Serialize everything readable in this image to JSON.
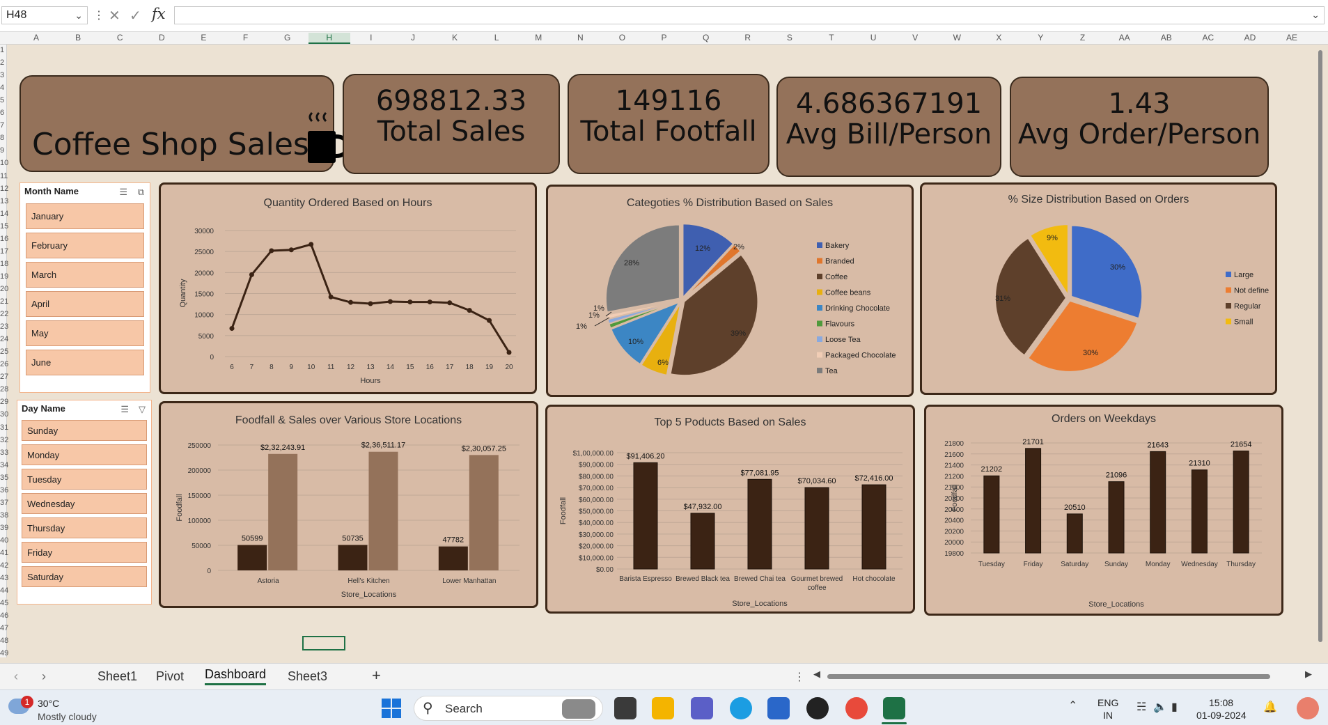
{
  "formula_bar": {
    "name_box": "H48",
    "fx": "fx",
    "formula": ""
  },
  "columns": [
    "A",
    "B",
    "C",
    "D",
    "E",
    "F",
    "G",
    "H",
    "I",
    "J",
    "K",
    "L",
    "M",
    "N",
    "O",
    "P",
    "Q",
    "R",
    "S",
    "T",
    "U",
    "V",
    "W",
    "X",
    "Y",
    "Z",
    "AA",
    "AB",
    "AC",
    "AD",
    "AE"
  ],
  "rows": [
    "1",
    "2",
    "3",
    "4",
    "5",
    "6",
    "7",
    "8",
    "9",
    "10",
    "11",
    "12",
    "13",
    "14",
    "15",
    "16",
    "17",
    "18",
    "19",
    "20",
    "21",
    "22",
    "23",
    "24",
    "25",
    "26",
    "27",
    "28",
    "29",
    "30",
    "31",
    "32",
    "33",
    "34",
    "35",
    "36",
    "37",
    "38",
    "39",
    "40",
    "41",
    "42",
    "43",
    "44",
    "45",
    "46",
    "47",
    "48",
    "49"
  ],
  "header_card": {
    "title": "Coffee Shop Sales",
    "icon": "coffee-cup-icon"
  },
  "kpis": [
    {
      "value": "698812.33",
      "label": "Total Sales"
    },
    {
      "value": "149116",
      "label": "Total Footfall"
    },
    {
      "value": "4.686367191",
      "label": "Avg Bill/Person"
    },
    {
      "value": "1.43",
      "label": "Avg Order/Person"
    }
  ],
  "slicers": {
    "month": {
      "title": "Month Name",
      "items": [
        "January",
        "February",
        "March",
        "April",
        "May",
        "June"
      ]
    },
    "day": {
      "title": "Day Name",
      "items": [
        "Sunday",
        "Monday",
        "Tuesday",
        "Wednesday",
        "Thursday",
        "Friday",
        "Saturday"
      ]
    }
  },
  "chart_data": [
    {
      "type": "line",
      "title": "Quantity Ordered Based on Hours",
      "xlabel": "Hours",
      "ylabel": "Quantity",
      "x": [
        6,
        7,
        8,
        9,
        10,
        11,
        12,
        13,
        14,
        15,
        16,
        17,
        18,
        19,
        20
      ],
      "values": [
        6700,
        19500,
        25200,
        25400,
        26700,
        14200,
        12900,
        12600,
        13100,
        13000,
        13000,
        12800,
        11000,
        8600,
        1000
      ],
      "ylim": [
        0,
        30000
      ],
      "yticks": [
        "0",
        "5000",
        "10000",
        "15000",
        "20000",
        "25000",
        "30000"
      ],
      "color": "#3b2314"
    },
    {
      "type": "pie",
      "title": "Categoties % Distribution Based on Sales",
      "categories": [
        "Bakery",
        "Branded",
        "Coffee",
        "Coffee beans",
        "Drinking Chocolate",
        "Flavours",
        "Loose Tea",
        "Packaged Chocolate",
        "Tea"
      ],
      "values": [
        12,
        2,
        39,
        6,
        10,
        1,
        1,
        1,
        28
      ],
      "labels": [
        "12%",
        "2%",
        "39%",
        "6%",
        "10%",
        "1%",
        "1%",
        "1%",
        "28%"
      ],
      "colors": [
        "#3f5fb0",
        "#e0762c",
        "#5e402b",
        "#e8b00f",
        "#3c86c4",
        "#4f9a3c",
        "#8aa9de",
        "#f1cdb5",
        "#7c7c7c"
      ]
    },
    {
      "type": "pie",
      "title": "% Size Distribution Based on Orders",
      "categories": [
        "Large",
        "Not define",
        "Regular",
        "Small"
      ],
      "values": [
        30,
        30,
        31,
        9
      ],
      "labels": [
        "30%",
        "30%",
        "31%",
        "9%"
      ],
      "colors": [
        "#3f6cc8",
        "#ed7d31",
        "#5e402b",
        "#f2bb10"
      ]
    },
    {
      "type": "bar",
      "title": "Foodfall & Sales  over Various Store Locations",
      "xlabel": "Store_Locations",
      "ylabel": "Foodfall",
      "categories": [
        "Astoria",
        "Hell's Kitchen",
        "Lower Manhattan"
      ],
      "series": [
        {
          "values": [
            50599,
            50735,
            47782
          ],
          "labels": [
            "50599",
            "50735",
            "47782"
          ],
          "color": "#3b2314"
        },
        {
          "values": [
            232243.91,
            236511.17,
            230057.25
          ],
          "labels": [
            "$2,32,243.91",
            "$2,36,511.17",
            "$2,30,057.25"
          ],
          "color": "#94725a"
        }
      ],
      "ylim": [
        0,
        250000
      ],
      "yticks": [
        "0",
        "50000",
        "100000",
        "150000",
        "200000",
        "250000"
      ]
    },
    {
      "type": "bar",
      "title": "Top 5 Poducts Based on Sales",
      "xlabel": "Store_Locations",
      "ylabel": "Foodfall",
      "categories": [
        "Barista Espresso",
        "Brewed Black tea",
        "Brewed Chai tea",
        "Gourmet brewed coffee",
        "Hot chocolate"
      ],
      "values": [
        91406.2,
        47932.0,
        77081.95,
        70034.6,
        72416.0
      ],
      "labels": [
        "$91,406.20",
        "$47,932.00",
        "$77,081.95",
        "$70,034.60",
        "$72,416.00"
      ],
      "ylim": [
        0,
        100000
      ],
      "yticks": [
        "$0.00",
        "$10,000.00",
        "$20,000.00",
        "$30,000.00",
        "$40,000.00",
        "$50,000.00",
        "$60,000.00",
        "$70,000.00",
        "$80,000.00",
        "$90,000.00",
        "$1,00,000.00"
      ],
      "color": "#3b2314"
    },
    {
      "type": "bar",
      "title": "Orders on Weekdays",
      "xlabel": "Store_Locations",
      "ylabel": "Foodfall",
      "categories": [
        "Tuesday",
        "Friday",
        "Saturday",
        "Sunday",
        "Monday",
        "Wednesday",
        "Thursday"
      ],
      "values": [
        21202,
        21701,
        20510,
        21096,
        21643,
        21310,
        21654
      ],
      "labels": [
        "21202",
        "21701",
        "20510",
        "21096",
        "21643",
        "21310",
        "21654"
      ],
      "ylim": [
        19800,
        21800
      ],
      "yticks": [
        "19800",
        "20000",
        "20200",
        "20400",
        "20600",
        "20800",
        "21000",
        "21200",
        "21400",
        "21600",
        "21800"
      ],
      "color": "#3b2314"
    }
  ],
  "sheet_tabs": {
    "tabs": [
      "Sheet1",
      "Pivot",
      "Dashboard",
      "Sheet3"
    ],
    "active": "Dashboard",
    "add": "+"
  },
  "taskbar": {
    "temp": "30°C",
    "weather": "Mostly cloudy",
    "badge": "1",
    "search": "Search",
    "lang1": "ENG",
    "lang2": "IN",
    "time": "15:08",
    "date": "01-09-2024"
  }
}
